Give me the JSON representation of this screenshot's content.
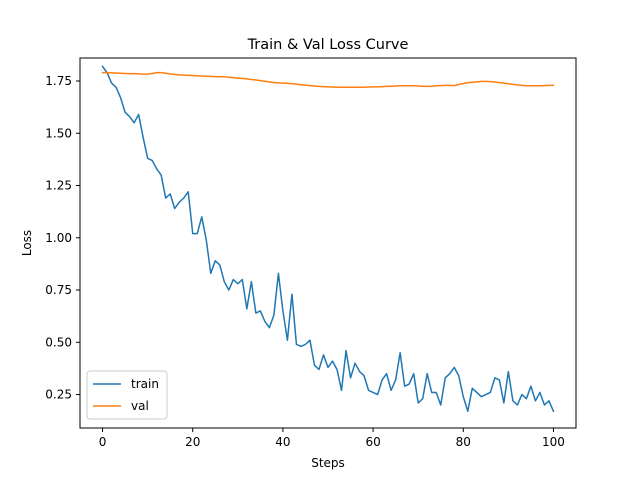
{
  "chart_data": {
    "type": "line",
    "title": "Train & Val Loss Curve",
    "xlabel": "Steps",
    "ylabel": "Loss",
    "xlim": [
      -5.0,
      105.0
    ],
    "ylim": [
      0.09,
      1.86
    ],
    "xticks": [
      0,
      20,
      40,
      60,
      80,
      100
    ],
    "xtick_labels": [
      "0",
      "20",
      "40",
      "60",
      "80",
      "100"
    ],
    "yticks": [
      0.25,
      0.5,
      0.75,
      1.0,
      1.25,
      1.5,
      1.75
    ],
    "ytick_labels": [
      "0.25",
      "0.50",
      "0.75",
      "1.00",
      "1.25",
      "1.50",
      "1.75"
    ],
    "grid": false,
    "legend_position": "lower-left",
    "x": [
      0,
      1,
      2,
      3,
      4,
      5,
      6,
      7,
      8,
      9,
      10,
      11,
      12,
      13,
      14,
      15,
      16,
      17,
      18,
      19,
      20,
      21,
      22,
      23,
      24,
      25,
      26,
      27,
      28,
      29,
      30,
      31,
      32,
      33,
      34,
      35,
      36,
      37,
      38,
      39,
      40,
      41,
      42,
      43,
      44,
      45,
      46,
      47,
      48,
      49,
      50,
      51,
      52,
      53,
      54,
      55,
      56,
      57,
      58,
      59,
      60,
      61,
      62,
      63,
      64,
      65,
      66,
      67,
      68,
      69,
      70,
      71,
      72,
      73,
      74,
      75,
      76,
      77,
      78,
      79,
      80,
      81,
      82,
      83,
      84,
      85,
      86,
      87,
      88,
      89,
      90,
      91,
      92,
      93,
      94,
      95,
      96,
      97,
      98,
      99,
      100
    ],
    "series": [
      {
        "name": "train",
        "color": "#1f77b4",
        "values": [
          1.82,
          1.79,
          1.74,
          1.72,
          1.67,
          1.6,
          1.58,
          1.55,
          1.59,
          1.48,
          1.38,
          1.37,
          1.33,
          1.3,
          1.19,
          1.21,
          1.14,
          1.17,
          1.19,
          1.22,
          1.02,
          1.02,
          1.1,
          0.99,
          0.83,
          0.89,
          0.87,
          0.79,
          0.75,
          0.8,
          0.78,
          0.8,
          0.66,
          0.79,
          0.64,
          0.65,
          0.6,
          0.57,
          0.63,
          0.83,
          0.65,
          0.51,
          0.73,
          0.49,
          0.48,
          0.49,
          0.51,
          0.39,
          0.37,
          0.44,
          0.38,
          0.41,
          0.37,
          0.27,
          0.46,
          0.33,
          0.4,
          0.36,
          0.34,
          0.27,
          0.26,
          0.25,
          0.32,
          0.35,
          0.27,
          0.32,
          0.45,
          0.29,
          0.3,
          0.35,
          0.21,
          0.23,
          0.35,
          0.26,
          0.26,
          0.2,
          0.33,
          0.35,
          0.38,
          0.34,
          0.24,
          0.17,
          0.28,
          0.26,
          0.24,
          0.25,
          0.26,
          0.33,
          0.32,
          0.21,
          0.36,
          0.22,
          0.2,
          0.25,
          0.23,
          0.29,
          0.22,
          0.26,
          0.2,
          0.22,
          0.17
        ]
      },
      {
        "name": "val",
        "color": "#ff7f0e",
        "values": [
          1.79,
          1.79,
          1.789,
          1.788,
          1.787,
          1.786,
          1.785,
          1.785,
          1.784,
          1.783,
          1.783,
          1.786,
          1.79,
          1.79,
          1.787,
          1.784,
          1.781,
          1.779,
          1.778,
          1.777,
          1.776,
          1.775,
          1.774,
          1.773,
          1.772,
          1.771,
          1.77,
          1.77,
          1.768,
          1.766,
          1.764,
          1.762,
          1.76,
          1.757,
          1.755,
          1.752,
          1.749,
          1.746,
          1.743,
          1.741,
          1.74,
          1.739,
          1.737,
          1.735,
          1.732,
          1.73,
          1.728,
          1.726,
          1.724,
          1.723,
          1.722,
          1.721,
          1.72,
          1.72,
          1.72,
          1.72,
          1.72,
          1.72,
          1.72,
          1.721,
          1.722,
          1.722,
          1.723,
          1.724,
          1.725,
          1.726,
          1.727,
          1.727,
          1.727,
          1.727,
          1.726,
          1.725,
          1.724,
          1.725,
          1.727,
          1.728,
          1.729,
          1.729,
          1.728,
          1.733,
          1.738,
          1.742,
          1.744,
          1.746,
          1.748,
          1.748,
          1.747,
          1.745,
          1.742,
          1.74,
          1.737,
          1.734,
          1.731,
          1.729,
          1.727,
          1.727,
          1.727,
          1.727,
          1.728,
          1.729,
          1.729
        ]
      }
    ]
  }
}
